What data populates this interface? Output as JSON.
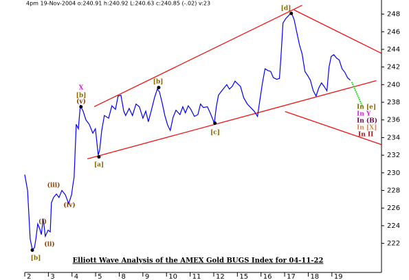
{
  "chart_data": {
    "type": "line",
    "header": "4pm 19-Nov-2004  o:240.91  h:240.92  L:240.63  c:240.85  (-.02)  v:23",
    "title": "Elliott Wave Analysis of the AMEX Gold BUGS Index for 04-11-22",
    "xlim": [
      0,
      15.1
    ],
    "ylim": [
      218.7,
      249.6
    ],
    "yticks": [
      222,
      224,
      226,
      228,
      230,
      232,
      234,
      236,
      238,
      240,
      242,
      244,
      246,
      248
    ],
    "xticks": [
      {
        "value": 0,
        "label": "2"
      },
      {
        "value": 1,
        "label": "3"
      },
      {
        "value": 2,
        "label": "4"
      },
      {
        "value": 3,
        "label": "5"
      },
      {
        "value": 4,
        "label": "8"
      },
      {
        "value": 5,
        "label": "9"
      },
      {
        "value": 6,
        "label": "10"
      },
      {
        "value": 7,
        "label": "11"
      },
      {
        "value": 8,
        "label": "12"
      },
      {
        "value": 9,
        "label": "15"
      },
      {
        "value": 10,
        "label": "16"
      },
      {
        "value": 11,
        "label": "17"
      },
      {
        "value": 12,
        "label": "18"
      },
      {
        "value": 13,
        "label": "19"
      }
    ],
    "series": [
      {
        "color": "#0000ee",
        "x": [
          0,
          0.12,
          0.23,
          0.32,
          0.41,
          0.47,
          0.55,
          0.64,
          0.7,
          0.78,
          0.87,
          0.99,
          1.08,
          1.13,
          1.22,
          1.34,
          1.45,
          1.57,
          1.72,
          1.86,
          1.98,
          2.03,
          2.09,
          2.18,
          2.27,
          2.35,
          2.47,
          2.59,
          2.73,
          2.88,
          2.99,
          3.11,
          3.17,
          3.26,
          3.37,
          3.55,
          3.69,
          3.84,
          3.95,
          4.07,
          4.19,
          4.27,
          4.42,
          4.56,
          4.71,
          4.85,
          5.0,
          5.12,
          5.23,
          5.35,
          5.49,
          5.61,
          5.7,
          5.81,
          5.93,
          6.05,
          6.16,
          6.28,
          6.4,
          6.57,
          6.69,
          6.8,
          6.92,
          7.03,
          7.18,
          7.33,
          7.44,
          7.56,
          7.73,
          7.85,
          7.97,
          8.02,
          8.11,
          8.2,
          8.31,
          8.43,
          8.55,
          8.66,
          8.78,
          8.9,
          9.01,
          9.13,
          9.27,
          9.42,
          9.56,
          9.71,
          9.85,
          9.94,
          10.06,
          10.17,
          10.29,
          10.41,
          10.52,
          10.67,
          10.78,
          10.84,
          10.93,
          11.05,
          11.16,
          11.28,
          11.4,
          11.51,
          11.63,
          11.74,
          11.86,
          11.98,
          12.09,
          12.21,
          12.33,
          12.44,
          12.56,
          12.67,
          12.79,
          12.88,
          12.97,
          13.08,
          13.2,
          13.31,
          13.43,
          13.55,
          13.66,
          13.78
        ],
        "values": [
          229.8,
          228,
          222.5,
          221.3,
          221.5,
          222.5,
          224.2,
          223.6,
          223,
          224.8,
          222.8,
          223.5,
          223.3,
          226.6,
          227.2,
          227.6,
          227.2,
          228,
          227.5,
          226.5,
          227.5,
          228.5,
          229.5,
          235.5,
          235,
          237.6,
          237,
          236,
          235.5,
          234.5,
          235,
          232,
          232.6,
          234.8,
          236.5,
          236.2,
          237.6,
          237.2,
          238.7,
          238.8,
          237,
          236.5,
          237.3,
          236.5,
          237.8,
          237.5,
          236.2,
          237,
          235.8,
          237,
          238.5,
          239.5,
          239.2,
          238,
          236.5,
          235.4,
          234.8,
          236.3,
          237.1,
          236.6,
          237.5,
          236.8,
          237.6,
          237.2,
          236.4,
          236.6,
          237.8,
          237.4,
          237.5,
          236.8,
          236,
          235.6,
          237.5,
          238.8,
          239.2,
          239.6,
          240,
          239.5,
          239.8,
          240.4,
          240.1,
          239.8,
          238.5,
          237.8,
          237.4,
          237,
          236.4,
          238,
          240.2,
          241.8,
          241.6,
          241.5,
          240.8,
          240.6,
          240.7,
          243,
          247,
          247.5,
          247.8,
          248.2,
          247.4,
          246,
          244.5,
          243.5,
          241.5,
          241,
          240.5,
          239.3,
          238.7,
          239.6,
          240.2,
          239.8,
          239.3,
          242,
          243.2,
          243.4,
          243,
          242.8,
          241.8,
          241.4,
          240.8,
          240.5
        ]
      },
      {
        "color": "#22dd22",
        "x": [
          13.84,
          14.3
        ],
        "values": [
          240.3,
          237.5
        ]
      }
    ],
    "trendlines": [
      {
        "color": "#ee1111",
        "x": [
          2.94,
          11.74
        ],
        "values": [
          237.5,
          249.0
        ]
      },
      {
        "color": "#ee1111",
        "x": [
          2.65,
          14.88
        ],
        "values": [
          231.58,
          240.45
        ]
      },
      {
        "color": "#ee1111",
        "x": [
          11.4,
          15.09
        ],
        "values": [
          248.47,
          243.56
        ]
      },
      {
        "color": "#ee1111",
        "x": [
          11.02,
          15.09
        ],
        "values": [
          236.95,
          233.21
        ]
      }
    ],
    "pivots": {
      "x": [
        0.32,
        2.38,
        3.14,
        5.67,
        8.05,
        11.28
      ],
      "values": [
        221.23,
        237.49,
        231.81,
        239.67,
        235.63,
        248.08
      ]
    },
    "annotations": [
      {
        "text": "[b]",
        "color": "#8a6a00"
      },
      {
        "text": "(i)",
        "color": "#8a3a00"
      },
      {
        "text": "(ii)",
        "color": "#8a3a00"
      },
      {
        "text": "(iii)",
        "color": "#8a3a00"
      },
      {
        "text": "(iv)",
        "color": "#8a3a00"
      },
      {
        "text": "X",
        "color": "#dd22dd"
      },
      {
        "text": "[b]",
        "color": "#8a6a00"
      },
      {
        "text": "(v)",
        "color": "#8a3a00"
      },
      {
        "text": "[a]",
        "color": "#8a6a00"
      },
      {
        "text": "[b]",
        "color": "#8a6a00"
      },
      {
        "text": "[c]",
        "color": "#8a6a00"
      },
      {
        "text": "[d]",
        "color": "#8a6a00"
      },
      {
        "text": "In [e]",
        "color": "#8a6a00"
      },
      {
        "text": "In Y",
        "color": "#dd22dd"
      },
      {
        "text": "In (B)",
        "color": "#6a0a4a"
      },
      {
        "text": "In [X]",
        "color": "#d08a5a"
      },
      {
        "text": "In II",
        "color": "#aa1111"
      }
    ]
  }
}
